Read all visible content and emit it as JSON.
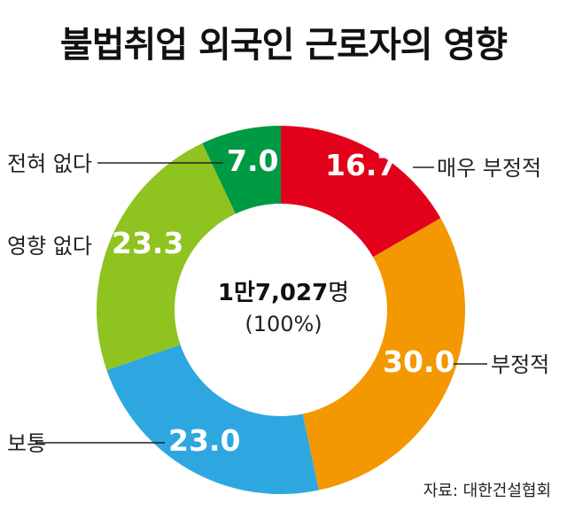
{
  "title": "불법취업 외국인 근로자의 영향",
  "center": {
    "total_num": "1만7,027",
    "total_unit": "명",
    "percent": "(100%)"
  },
  "source": "자료: 대한건설협회",
  "chart_data": {
    "type": "pie",
    "donut": true,
    "title": "불법취업 외국인 근로자의 영향",
    "categories": [
      "매우 부정적",
      "부정적",
      "보통",
      "영향 없다",
      "전혀 없다"
    ],
    "values": [
      16.7,
      30.0,
      23.0,
      23.3,
      7.0
    ],
    "value_labels": [
      "16.7",
      "30.0",
      "23.0",
      "23.3",
      "7.0"
    ],
    "colors": [
      "#e2001a",
      "#f39800",
      "#2ea7e0",
      "#8fc31f",
      "#009944"
    ],
    "start": "top",
    "direction": "clockwise"
  }
}
